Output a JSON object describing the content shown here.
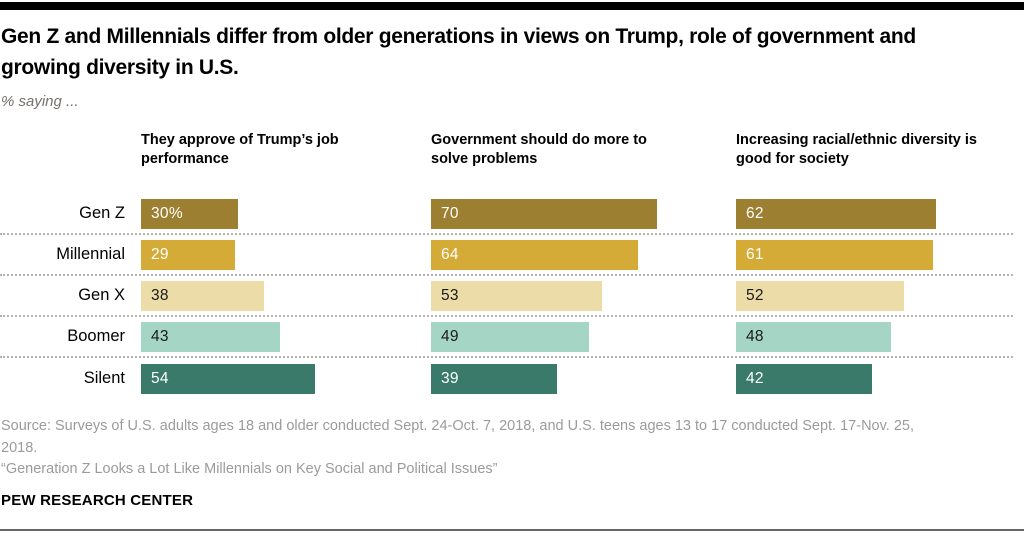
{
  "page": {
    "title": "Gen Z and Millennials differ from older generations in views on Trump, role of government and growing diversity in U.S.",
    "subtitle": "% saying ...",
    "source_line1": "Source: Surveys of U.S. adults ages 18 and older conducted Sept. 24-Oct. 7, 2018, and U.S. teens ages 13 to 17 conducted Sept. 17-Nov. 25,",
    "source_line2": "2018.",
    "study_title": "“Generation Z Looks a Lot Like Millennials on Key Social and Political Issues”",
    "brand": "PEW RESEARCH CENTER"
  },
  "chart_data": {
    "type": "bar",
    "orientation": "horizontal",
    "categories": [
      "Gen Z",
      "Millennial",
      "Gen X",
      "Boomer",
      "Silent"
    ],
    "series": [
      {
        "name": "They approve of Trump’s job performance",
        "values": [
          30,
          29,
          38,
          43,
          54
        ]
      },
      {
        "name": "Government should do more to solve problems",
        "values": [
          70,
          64,
          53,
          49,
          39
        ]
      },
      {
        "name": "Increasing racial/ethnic diversity is good for society",
        "values": [
          62,
          61,
          52,
          48,
          42
        ]
      }
    ],
    "value_labels": [
      [
        "30%",
        "29",
        "38",
        "43",
        "54"
      ],
      [
        "70",
        "64",
        "53",
        "49",
        "39"
      ],
      [
        "62",
        "61",
        "52",
        "48",
        "42"
      ]
    ],
    "bar_colors": [
      "#9d7f32",
      "#d4ab36",
      "#ecdca8",
      "#a5d6c5",
      "#3a7a6a"
    ],
    "value_label_colors": [
      "#ffffff",
      "#ffffff",
      "#1a1a1a",
      "#1a1a1a",
      "#ffffff"
    ],
    "xlim": [
      0,
      100
    ],
    "axes": "none",
    "grid": false,
    "legend": "none",
    "row_separator": "dotted"
  }
}
